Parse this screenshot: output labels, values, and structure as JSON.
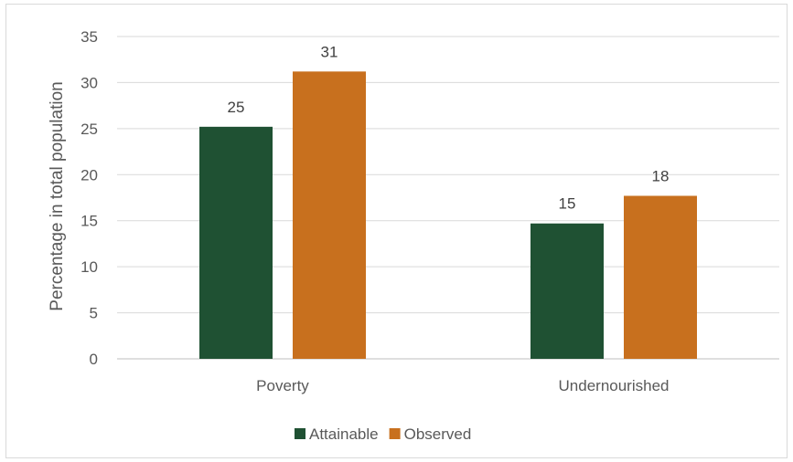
{
  "chart_data": {
    "type": "bar",
    "categories": [
      "Poverty",
      "Undernourished"
    ],
    "series": [
      {
        "name": "Attainable",
        "values": [
          25.2,
          14.7
        ],
        "labels": [
          "25",
          "15"
        ],
        "color": "#1f5133"
      },
      {
        "name": "Observed",
        "values": [
          31.2,
          17.7
        ],
        "labels": [
          "31",
          "18"
        ],
        "color": "#c8701e"
      }
    ],
    "title": "",
    "xlabel": "",
    "ylabel": "Percentage in total population",
    "ylim": [
      0,
      35
    ],
    "yticks": [
      0,
      5,
      10,
      15,
      20,
      25,
      30,
      35
    ],
    "grid": true,
    "legend_position": "bottom"
  }
}
